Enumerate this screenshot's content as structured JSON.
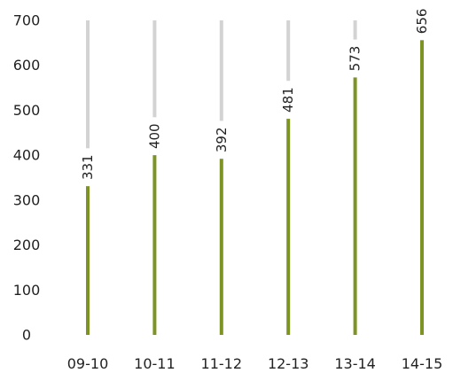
{
  "chart_data": {
    "type": "bar",
    "title": "",
    "xlabel": "",
    "ylabel": "",
    "categories": [
      "09-10",
      "10-11",
      "11-12",
      "12-13",
      "13-14",
      "14-15"
    ],
    "values": [
      331,
      400,
      392,
      481,
      573,
      656
    ],
    "value_labels": [
      "331",
      "400",
      "392",
      "481",
      "573",
      "656"
    ],
    "ylim": [
      0,
      700
    ],
    "yticks": [
      0,
      100,
      200,
      300,
      400,
      500,
      600,
      700
    ],
    "ytick_labels": [
      "0",
      "100",
      "200",
      "300",
      "400",
      "500",
      "600",
      "700"
    ],
    "grid": false,
    "legend": "none",
    "background_track": true,
    "colors": {
      "bar": "#7d9424",
      "track": "#d3d3d3",
      "text": "#222222"
    }
  }
}
